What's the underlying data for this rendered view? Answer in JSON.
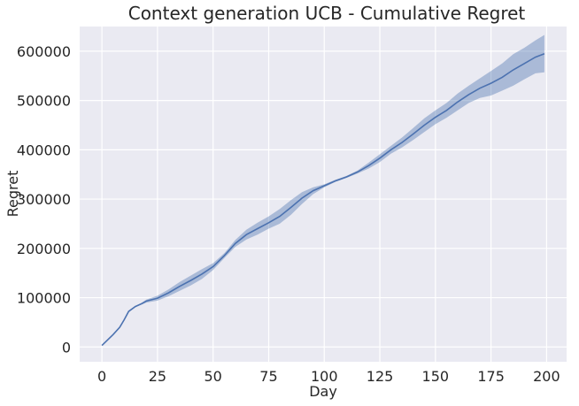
{
  "chart_data": {
    "type": "line",
    "title": "Context generation UCB - Cumulative Regret",
    "xlabel": "Day",
    "ylabel": "Regret",
    "xlim": [
      -10,
      209
    ],
    "ylim": [
      -30000,
      650000
    ],
    "xticks": [
      0,
      25,
      50,
      75,
      100,
      125,
      150,
      175,
      200
    ],
    "yticks": [
      0,
      100000,
      200000,
      300000,
      400000,
      500000,
      600000
    ],
    "xtick_labels": [
      "0",
      "25",
      "50",
      "75",
      "100",
      "125",
      "150",
      "175",
      "200"
    ],
    "ytick_labels": [
      "0",
      "100000",
      "200000",
      "300000",
      "400000",
      "500000",
      "600000"
    ],
    "grid": true,
    "background": "#eaeaf2",
    "line_color": "#4c72b0",
    "band_color": "#4c72b0",
    "series": [
      {
        "x": [
          0,
          5,
          8,
          10,
          12,
          15,
          18,
          20,
          25,
          30,
          35,
          40,
          45,
          50,
          55,
          60,
          65,
          70,
          75,
          80,
          85,
          90,
          95,
          100,
          105,
          110,
          115,
          120,
          125,
          130,
          135,
          140,
          145,
          150,
          155,
          160,
          165,
          170,
          175,
          180,
          185,
          190,
          195,
          199
        ],
        "mean": [
          3000,
          25000,
          40000,
          55000,
          72000,
          82000,
          88000,
          93000,
          99000,
          110000,
          123000,
          135000,
          148000,
          163000,
          185000,
          210000,
          228000,
          240000,
          252000,
          265000,
          283000,
          302000,
          317000,
          327000,
          337000,
          345000,
          355000,
          368000,
          383000,
          400000,
          415000,
          432000,
          450000,
          466000,
          480000,
          497000,
          512000,
          525000,
          535000,
          547000,
          562000,
          575000,
          588000,
          595000
        ],
        "lower": [
          3000,
          25000,
          40000,
          55000,
          71000,
          81000,
          86000,
          90000,
          94000,
          103000,
          114000,
          125000,
          138000,
          156000,
          180000,
          203000,
          218000,
          228000,
          240000,
          250000,
          268000,
          290000,
          310000,
          324000,
          335000,
          343000,
          352000,
          362000,
          375000,
          392000,
          405000,
          420000,
          436000,
          452000,
          465000,
          480000,
          495000,
          505000,
          510000,
          520000,
          530000,
          543000,
          555000,
          557000
        ],
        "upper": [
          3000,
          25000,
          40000,
          55000,
          73000,
          83000,
          90000,
          96000,
          104000,
          117000,
          132000,
          145000,
          158000,
          170000,
          190000,
          217000,
          238000,
          252000,
          265000,
          280000,
          298000,
          314000,
          324000,
          330000,
          339000,
          347000,
          358000,
          374000,
          391000,
          408000,
          425000,
          444000,
          464000,
          480000,
          495000,
          514000,
          530000,
          545000,
          560000,
          575000,
          594000,
          607000,
          622000,
          633000
        ]
      }
    ]
  }
}
